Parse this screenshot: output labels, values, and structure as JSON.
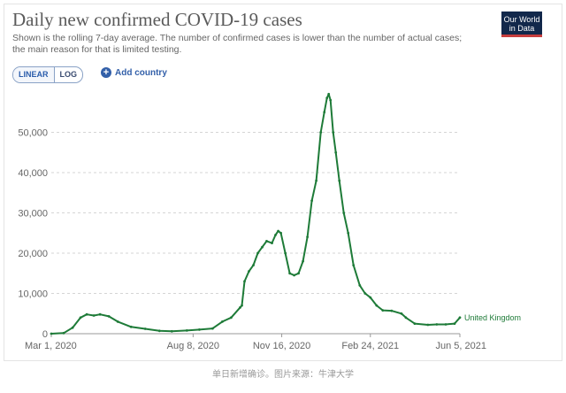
{
  "header": {
    "title": "Daily new confirmed COVID-19 cases",
    "subtitle": "Shown is the rolling 7-day average. The number of confirmed cases is lower than the number of actual cases; the main reason for that is limited testing."
  },
  "logo": {
    "line1": "Our World",
    "line2": "in Data"
  },
  "controls": {
    "linear_label": "LINEAR",
    "log_label": "LOG",
    "add_country_label": "Add country",
    "active_scale": "linear"
  },
  "caption": "单日新增确诊。图片来源：牛津大学",
  "colors": {
    "series": "#1e7b38",
    "grid": "#d5d5d5",
    "text": "#666666"
  },
  "chart_data": {
    "type": "line",
    "title": "Daily new confirmed COVID-19 cases",
    "xlabel": "",
    "ylabel": "",
    "ylim": [
      0,
      60000
    ],
    "xlim": [
      "2020-03-01",
      "2021-06-05"
    ],
    "y_ticks": [
      "0",
      "10,000",
      "20,000",
      "30,000",
      "40,000",
      "50,000"
    ],
    "y_tick_values": [
      0,
      10000,
      20000,
      30000,
      40000,
      50000
    ],
    "x_ticks": [
      "Mar 1, 2020",
      "Aug 8, 2020",
      "Nov 16, 2020",
      "Feb 24, 2021",
      "Jun 5, 2021"
    ],
    "x_tick_values": [
      "2020-03-01",
      "2020-08-08",
      "2020-11-16",
      "2021-02-24",
      "2021-06-05"
    ],
    "grid": true,
    "series": [
      {
        "name": "United Kingdom",
        "color": "#1e7b38",
        "x": [
          "2020-03-01",
          "2020-03-15",
          "2020-03-25",
          "2020-04-03",
          "2020-04-10",
          "2020-04-18",
          "2020-04-25",
          "2020-05-05",
          "2020-05-15",
          "2020-05-30",
          "2020-06-15",
          "2020-07-01",
          "2020-07-15",
          "2020-08-01",
          "2020-08-15",
          "2020-08-30",
          "2020-09-10",
          "2020-09-20",
          "2020-09-30",
          "2020-10-02",
          "2020-10-05",
          "2020-10-10",
          "2020-10-15",
          "2020-10-20",
          "2020-10-25",
          "2020-10-30",
          "2020-11-05",
          "2020-11-09",
          "2020-11-12",
          "2020-11-15",
          "2020-11-20",
          "2020-11-25",
          "2020-11-30",
          "2020-12-05",
          "2020-12-10",
          "2020-12-15",
          "2020-12-20",
          "2020-12-25",
          "2020-12-30",
          "2021-01-03",
          "2021-01-06",
          "2021-01-08",
          "2021-01-10",
          "2021-01-13",
          "2021-01-16",
          "2021-01-20",
          "2021-01-25",
          "2021-01-30",
          "2021-02-05",
          "2021-02-12",
          "2021-02-18",
          "2021-02-24",
          "2021-03-03",
          "2021-03-10",
          "2021-03-20",
          "2021-03-31",
          "2021-04-05",
          "2021-04-15",
          "2021-04-30",
          "2021-05-10",
          "2021-05-20",
          "2021-05-30",
          "2021-06-05"
        ],
        "y": [
          0,
          150,
          1500,
          4000,
          4800,
          4500,
          4800,
          4300,
          3000,
          1700,
          1200,
          700,
          600,
          800,
          1000,
          1300,
          3000,
          4000,
          6500,
          7000,
          13000,
          15500,
          17000,
          20000,
          21500,
          23000,
          22500,
          24500,
          25500,
          25000,
          20000,
          15000,
          14500,
          15000,
          18000,
          24000,
          33000,
          38000,
          50000,
          55000,
          58500,
          59500,
          58000,
          50000,
          45000,
          38000,
          30000,
          25000,
          17000,
          12000,
          10000,
          9000,
          7000,
          5800,
          5700,
          5000,
          4000,
          2500,
          2200,
          2300,
          2300,
          2500,
          4000
        ]
      }
    ]
  }
}
